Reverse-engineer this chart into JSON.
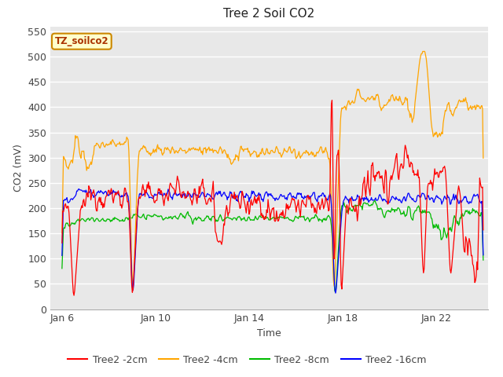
{
  "title": "Tree 2 Soil CO2",
  "xlabel": "Time",
  "ylabel": "CO2 (mV)",
  "ylim": [
    0,
    560
  ],
  "yticks": [
    0,
    50,
    100,
    150,
    200,
    250,
    300,
    350,
    400,
    450,
    500,
    550
  ],
  "xtick_labels": [
    "Jan 6",
    "Jan 10",
    "Jan 14",
    "Jan 18",
    "Jan 22"
  ],
  "xtick_positions": [
    6,
    10,
    14,
    18,
    22
  ],
  "xlim": [
    5.5,
    24.2
  ],
  "colors": {
    "2cm": "#ff0000",
    "4cm": "#ffa500",
    "8cm": "#00bb00",
    "16cm": "#0000ff"
  },
  "legend_labels": [
    "Tree2 -2cm",
    "Tree2 -4cm",
    "Tree2 -8cm",
    "Tree2 -16cm"
  ],
  "watermark_text": "TZ_soilco2",
  "bg_color": "#e8e8e8",
  "grid_color": "#ffffff",
  "watermark_bg": "#ffffcc",
  "watermark_border": "#cc8800",
  "fig_width": 6.4,
  "fig_height": 4.8,
  "dpi": 100
}
